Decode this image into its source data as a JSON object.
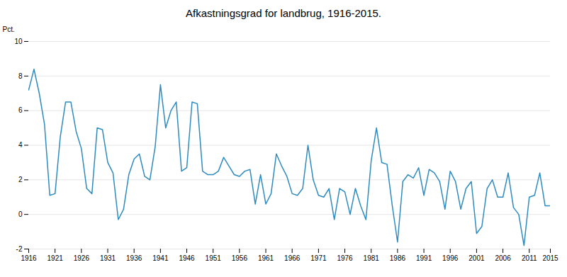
{
  "chart_data": {
    "type": "line",
    "title": "Afkastningsgrad for landbrug, 1916-2015.",
    "ylabel": "Pct.",
    "x": [
      1916,
      1917,
      1918,
      1919,
      1920,
      1921,
      1922,
      1923,
      1924,
      1925,
      1926,
      1927,
      1928,
      1929,
      1930,
      1931,
      1932,
      1933,
      1934,
      1935,
      1936,
      1937,
      1938,
      1939,
      1940,
      1941,
      1942,
      1943,
      1944,
      1945,
      1946,
      1947,
      1948,
      1949,
      1950,
      1951,
      1952,
      1953,
      1954,
      1955,
      1956,
      1957,
      1958,
      1959,
      1960,
      1961,
      1962,
      1963,
      1964,
      1965,
      1966,
      1967,
      1968,
      1969,
      1970,
      1971,
      1972,
      1973,
      1974,
      1975,
      1976,
      1977,
      1978,
      1979,
      1980,
      1981,
      1982,
      1983,
      1984,
      1985,
      1986,
      1987,
      1988,
      1989,
      1990,
      1991,
      1992,
      1993,
      1994,
      1995,
      1996,
      1997,
      1998,
      1999,
      2000,
      2001,
      2002,
      2003,
      2004,
      2005,
      2006,
      2007,
      2008,
      2009,
      2010,
      2011,
      2012,
      2013,
      2014,
      2015
    ],
    "values": [
      7.2,
      8.4,
      7.0,
      5.2,
      1.1,
      1.2,
      4.5,
      6.5,
      6.5,
      4.8,
      3.8,
      1.5,
      1.2,
      5.0,
      4.9,
      3.0,
      2.4,
      -0.3,
      0.3,
      2.3,
      3.2,
      3.5,
      2.2,
      2.0,
      3.9,
      7.5,
      5.0,
      6.0,
      6.5,
      2.5,
      2.7,
      6.5,
      6.4,
      2.5,
      2.3,
      2.3,
      2.5,
      3.3,
      2.8,
      2.3,
      2.2,
      2.5,
      2.6,
      0.6,
      2.3,
      0.6,
      1.2,
      3.5,
      2.8,
      2.2,
      1.2,
      1.1,
      1.5,
      4.0,
      2.0,
      1.1,
      1.0,
      1.5,
      -0.3,
      1.5,
      1.3,
      0.0,
      1.5,
      0.5,
      -0.3,
      3.1,
      5.0,
      3.0,
      2.9,
      0.5,
      -1.6,
      1.9,
      2.3,
      2.1,
      2.7,
      1.1,
      2.6,
      2.4,
      1.9,
      0.3,
      2.5,
      1.9,
      0.3,
      1.5,
      1.9,
      -1.1,
      -0.7,
      1.5,
      2.0,
      1.0,
      1.0,
      2.4,
      0.4,
      0.0,
      -1.8,
      1.0,
      1.1,
      2.4,
      0.5,
      0.5
    ],
    "color": "#2e8bc0",
    "xlim": [
      1916,
      2015
    ],
    "xticks": [
      1916,
      1921,
      1926,
      1931,
      1936,
      1941,
      1946,
      1951,
      1956,
      1961,
      1966,
      1971,
      1976,
      1981,
      1986,
      1991,
      1996,
      2001,
      2006,
      2011,
      2015
    ],
    "ylim": [
      -2,
      10
    ],
    "yticks": [
      -2,
      0,
      2,
      4,
      6,
      8,
      10
    ],
    "grid": true
  }
}
